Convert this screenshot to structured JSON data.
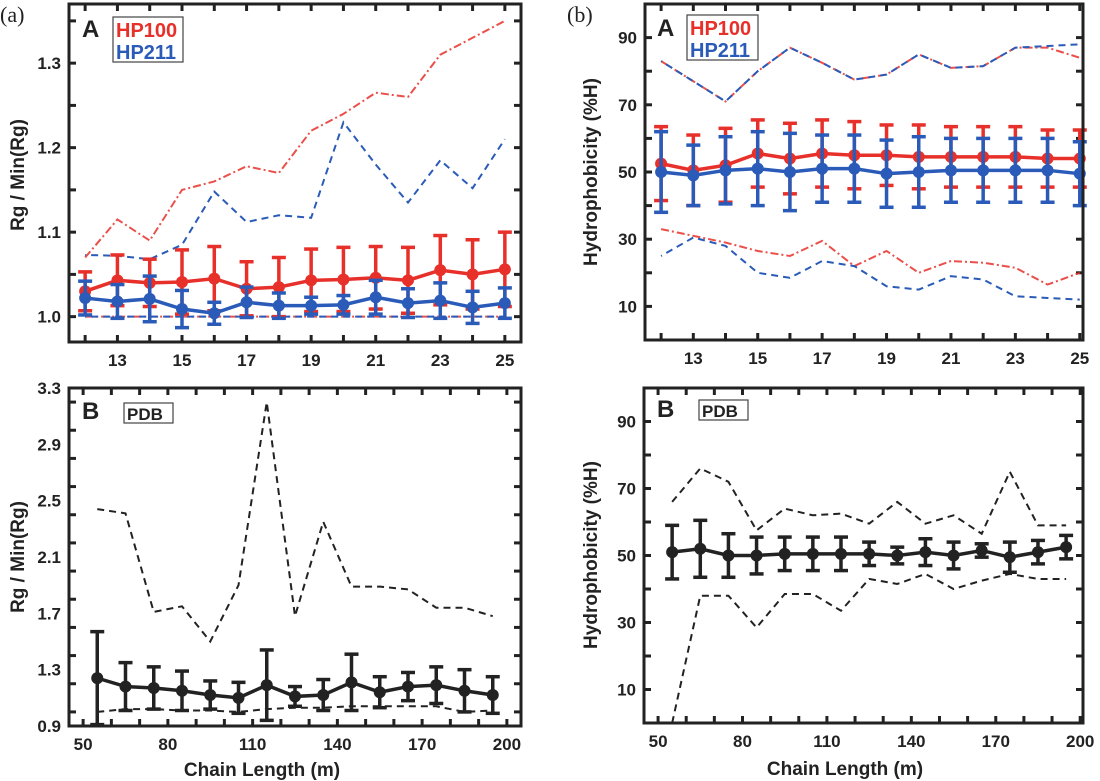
{
  "chart_data": [
    {
      "panel_label": "(a)",
      "subpanel": "A",
      "type": "line",
      "xlabel": "",
      "ylabel": "Rg / Min(Rg)",
      "xlim": [
        11.5,
        25.5
      ],
      "ylim": [
        0.97,
        1.37
      ],
      "xticks": [
        13,
        15,
        17,
        19,
        21,
        23,
        25
      ],
      "yticks": [
        1.0,
        1.1,
        1.2,
        1.3
      ],
      "ytick_labels": [
        "1.0",
        "1.1",
        "1.2",
        "1.3"
      ],
      "x_minor_step": 1,
      "y_minor_step": 0.05,
      "legend": [
        "HP100",
        "HP211"
      ],
      "legend_position": "top-left",
      "grid": false,
      "x": [
        12,
        13,
        14,
        15,
        16,
        17,
        18,
        19,
        20,
        21,
        22,
        23,
        24,
        25
      ],
      "series": [
        {
          "name": "HP100",
          "color": "#e8302a",
          "mean": [
            1.03,
            1.043,
            1.04,
            1.041,
            1.045,
            1.033,
            1.035,
            1.043,
            1.044,
            1.046,
            1.043,
            1.055,
            1.05,
            1.056
          ],
          "error": [
            0.023,
            0.03,
            0.028,
            0.038,
            0.038,
            0.032,
            0.035,
            0.037,
            0.038,
            0.037,
            0.039,
            0.041,
            0.041,
            0.044
          ],
          "max": [
            1.07,
            1.115,
            1.09,
            1.15,
            1.16,
            1.178,
            1.17,
            1.22,
            1.24,
            1.265,
            1.26,
            1.31,
            1.33,
            1.35
          ],
          "min": [
            1.0,
            1.0,
            1.0,
            1.0,
            1.0,
            1.0,
            1.0,
            1.0,
            1.0,
            1.0,
            1.0,
            1.0,
            1.0,
            1.0
          ]
        },
        {
          "name": "HP211",
          "color": "#2a5bb8",
          "mean": [
            1.022,
            1.018,
            1.021,
            1.009,
            1.004,
            1.017,
            1.013,
            1.013,
            1.014,
            1.023,
            1.016,
            1.019,
            1.011,
            1.016
          ],
          "error": [
            0.02,
            0.02,
            0.027,
            0.022,
            0.013,
            0.018,
            0.015,
            0.01,
            0.011,
            0.02,
            0.017,
            0.021,
            0.019,
            0.018
          ],
          "max": [
            1.073,
            1.072,
            1.068,
            1.085,
            1.148,
            1.112,
            1.12,
            1.117,
            1.23,
            1.18,
            1.135,
            1.185,
            1.152,
            1.21
          ],
          "min": [
            1.0,
            1.0,
            1.0,
            1.0,
            1.0,
            1.0,
            1.0,
            1.0,
            1.0,
            1.0,
            1.0,
            1.0,
            1.0,
            1.0
          ]
        }
      ]
    },
    {
      "panel_label": "",
      "subpanel": "B",
      "type": "line",
      "xlabel": "Chain Length (m)",
      "ylabel": "Rg / Min(Rg)",
      "xlim": [
        45,
        205
      ],
      "ylim": [
        0.9,
        3.3
      ],
      "xticks": [
        50,
        80,
        110,
        140,
        170,
        200
      ],
      "yticks": [
        0.9,
        1.3,
        1.7,
        2.1,
        2.5,
        2.9,
        3.3
      ],
      "ytick_labels": [
        "0.9",
        "1.3",
        "1.7",
        "2.1",
        "2.5",
        "2.9",
        "3.3"
      ],
      "x_minor_step": 10,
      "y_minor_step": 0.2,
      "legend": [
        "PDB"
      ],
      "legend_position": "top-left",
      "grid": false,
      "x": [
        55,
        65,
        75,
        85,
        95,
        105,
        115,
        125,
        135,
        145,
        155,
        165,
        175,
        185,
        195
      ],
      "series": [
        {
          "name": "PDB",
          "color": "#222222",
          "mean": [
            1.24,
            1.18,
            1.17,
            1.15,
            1.12,
            1.1,
            1.19,
            1.11,
            1.12,
            1.21,
            1.14,
            1.18,
            1.19,
            1.15,
            1.12
          ],
          "error": [
            0.33,
            0.17,
            0.15,
            0.14,
            0.1,
            0.11,
            0.25,
            0.07,
            0.11,
            0.2,
            0.11,
            0.1,
            0.13,
            0.15,
            0.13
          ],
          "max": [
            2.44,
            2.41,
            1.71,
            1.75,
            1.5,
            1.9,
            3.2,
            1.68,
            2.35,
            1.89,
            1.89,
            1.87,
            1.74,
            1.74,
            1.68
          ],
          "min": [
            1.0,
            1.02,
            1.02,
            1.01,
            1.01,
            1.0,
            1.02,
            1.03,
            1.03,
            1.04,
            1.04,
            1.04,
            1.04,
            1.0,
            1.01
          ]
        }
      ]
    },
    {
      "panel_label": "(b)",
      "subpanel": "A",
      "type": "line",
      "xlabel": "",
      "ylabel": "Hydrophobicity (%H)",
      "xlim": [
        11.5,
        25.1
      ],
      "ylim": [
        0,
        100
      ],
      "xticks": [
        13,
        15,
        17,
        19,
        21,
        23,
        25
      ],
      "yticks": [
        10,
        30,
        50,
        70,
        90
      ],
      "ytick_labels": [
        "10",
        "30",
        "50",
        "70",
        "90"
      ],
      "x_minor_step": 1,
      "y_minor_step": 10,
      "legend": [
        "HP100",
        "HP211"
      ],
      "legend_position": "top-left",
      "grid": false,
      "x": [
        12,
        13,
        14,
        15,
        16,
        17,
        18,
        19,
        20,
        21,
        22,
        23,
        24,
        25
      ],
      "series": [
        {
          "name": "HP100",
          "color": "#e8302a",
          "mean": [
            52.5,
            50.5,
            52,
            55.5,
            54,
            55.5,
            55,
            55,
            54.5,
            54.5,
            54.5,
            54.5,
            54,
            54
          ],
          "error": [
            11,
            10.5,
            11,
            10,
            10.5,
            10,
            10,
            9,
            9.5,
            9,
            9,
            9,
            8.5,
            8.5
          ],
          "max": [
            83,
            77,
            71,
            80,
            87,
            82.5,
            77.5,
            79,
            85,
            81,
            81.5,
            87,
            87,
            84
          ],
          "min": [
            33,
            31,
            29,
            26.5,
            25,
            29.5,
            22,
            26.5,
            20,
            23.5,
            23,
            21.5,
            16.5,
            20
          ]
        },
        {
          "name": "HP211",
          "color": "#2a5bb8",
          "mean": [
            50,
            49,
            50.5,
            51,
            50,
            51,
            51,
            49.5,
            50,
            50.5,
            50.5,
            50.5,
            50.5,
            49.5
          ],
          "error": [
            12,
            9,
            10,
            11,
            11.5,
            10,
            10,
            10,
            10.5,
            9.5,
            9.5,
            9.5,
            9.5,
            9.5
          ],
          "max": [
            83,
            77,
            71,
            80,
            87,
            82.5,
            77.5,
            79,
            85,
            81,
            81.5,
            87,
            87.5,
            88
          ],
          "min": [
            25,
            30.5,
            28,
            20,
            18.5,
            23.5,
            22,
            16,
            15,
            19,
            18,
            13,
            12.5,
            12
          ]
        }
      ]
    },
    {
      "panel_label": "",
      "subpanel": "B",
      "type": "line",
      "xlabel": "Chain Length (m)",
      "ylabel": "Hydrophobicity (%H)",
      "xlim": [
        45,
        201
      ],
      "ylim": [
        0,
        100
      ],
      "xticks": [
        50,
        80,
        110,
        140,
        170,
        200
      ],
      "yticks": [
        10,
        30,
        50,
        70,
        90
      ],
      "ytick_labels": [
        "10",
        "30",
        "50",
        "70",
        "90"
      ],
      "x_minor_step": 10,
      "y_minor_step": 10,
      "legend": [
        "PDB"
      ],
      "legend_position": "top-left",
      "grid": false,
      "x": [
        55,
        65,
        75,
        85,
        95,
        105,
        115,
        125,
        135,
        145,
        155,
        165,
        175,
        185,
        195
      ],
      "series": [
        {
          "name": "PDB",
          "color": "#222222",
          "mean": [
            51,
            52,
            50,
            50,
            50.5,
            50.5,
            50.5,
            50.5,
            50,
            51,
            50,
            51.5,
            49.5,
            51,
            52.5
          ],
          "error": [
            8,
            8.5,
            6.5,
            5.5,
            5,
            5,
            5,
            3.5,
            2.5,
            4,
            4,
            2,
            4.5,
            3.5,
            3.5
          ],
          "max": [
            66,
            76,
            72,
            57.5,
            64,
            62,
            62.5,
            59.5,
            66,
            59.5,
            62,
            56.5,
            75,
            59,
            59
          ],
          "min": [
            0,
            38,
            38,
            28.5,
            38.5,
            38.5,
            33.5,
            43,
            41.5,
            44.5,
            40,
            42.5,
            44.5,
            43,
            43
          ]
        }
      ]
    }
  ]
}
